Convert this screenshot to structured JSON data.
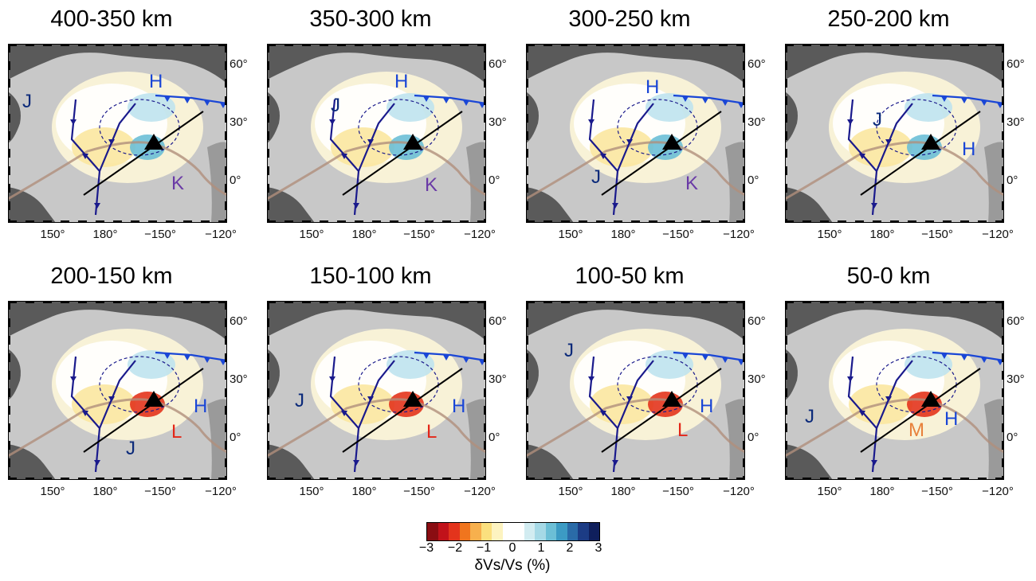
{
  "panels": [
    {
      "title": "400-350 km",
      "labels": [
        {
          "t": "J",
          "c": "#0b2a7a",
          "x": 18,
          "y": 80
        },
        {
          "t": "H",
          "c": "#1a46d6",
          "x": 177,
          "y": 55
        },
        {
          "t": "K",
          "c": "#6a3aa6",
          "x": 205,
          "y": 183
        }
      ]
    },
    {
      "title": "350-300 km",
      "labels": [
        {
          "t": "J",
          "c": "#0b2a7a",
          "x": 80,
          "y": 85
        },
        {
          "t": "H",
          "c": "#1a46d6",
          "x": 160,
          "y": 55
        },
        {
          "t": "K",
          "c": "#6a3aa6",
          "x": 198,
          "y": 185
        }
      ]
    },
    {
      "title": "300-250 km",
      "labels": [
        {
          "t": "H",
          "c": "#1a46d6",
          "x": 150,
          "y": 62
        },
        {
          "t": "J",
          "c": "#0b2a7a",
          "x": 82,
          "y": 175
        },
        {
          "t": "K",
          "c": "#6a3aa6",
          "x": 200,
          "y": 183
        }
      ]
    },
    {
      "title": "250-200 km",
      "labels": [
        {
          "t": "J",
          "c": "#0b2a7a",
          "x": 110,
          "y": 103
        },
        {
          "t": "H",
          "c": "#1a46d6",
          "x": 222,
          "y": 140
        }
      ]
    },
    {
      "title": "200-150 km",
      "labels": [
        {
          "t": "H",
          "c": "#1a46d6",
          "x": 233,
          "y": 140
        },
        {
          "t": "L",
          "c": "#e32618",
          "x": 205,
          "y": 172
        },
        {
          "t": "J",
          "c": "#0b2a7a",
          "x": 148,
          "y": 193
        }
      ]
    },
    {
      "title": "150-100 km",
      "labels": [
        {
          "t": "J",
          "c": "#0b2a7a",
          "x": 35,
          "y": 133
        },
        {
          "t": "H",
          "c": "#1a46d6",
          "x": 232,
          "y": 140
        },
        {
          "t": "L",
          "c": "#e32618",
          "x": 200,
          "y": 172
        }
      ]
    },
    {
      "title": "100-50 km",
      "labels": [
        {
          "t": "J",
          "c": "#0b2a7a",
          "x": 48,
          "y": 70
        },
        {
          "t": "H",
          "c": "#1a46d6",
          "x": 218,
          "y": 140
        },
        {
          "t": "L",
          "c": "#e32618",
          "x": 190,
          "y": 170
        }
      ]
    },
    {
      "title": "50-0 km",
      "labels": [
        {
          "t": "J",
          "c": "#0b2a7a",
          "x": 25,
          "y": 153
        },
        {
          "t": "H",
          "c": "#1a46d6",
          "x": 200,
          "y": 156
        },
        {
          "t": "M",
          "c": "#e8803a",
          "x": 155,
          "y": 170
        }
      ]
    }
  ],
  "lat_ticks": [
    "60°",
    "30°",
    "0°"
  ],
  "lon_ticks": [
    "150°",
    "180°",
    "−150°",
    "−120°"
  ],
  "colorbar": {
    "colors": [
      "#8a0d12",
      "#c1121a",
      "#e3341c",
      "#f0751e",
      "#f7b04d",
      "#fbe07e",
      "#fdf3c0",
      "#ffffff",
      "#ffffff",
      "#d2ecf1",
      "#a5d9e6",
      "#6cbfd6",
      "#3c9bc4",
      "#2a6ba8",
      "#1c3c85",
      "#0f1f5c"
    ],
    "ticks": [
      "−3",
      "−2",
      "−1",
      "0",
      "1",
      "2",
      "3"
    ],
    "label": "δVs/Vs (%)"
  },
  "style": {
    "land": "#5a5a5a",
    "ocean": "#c8c8c8",
    "trench": "#1a1a8c",
    "plume_line": "#b08f7c",
    "track": "#000000"
  }
}
